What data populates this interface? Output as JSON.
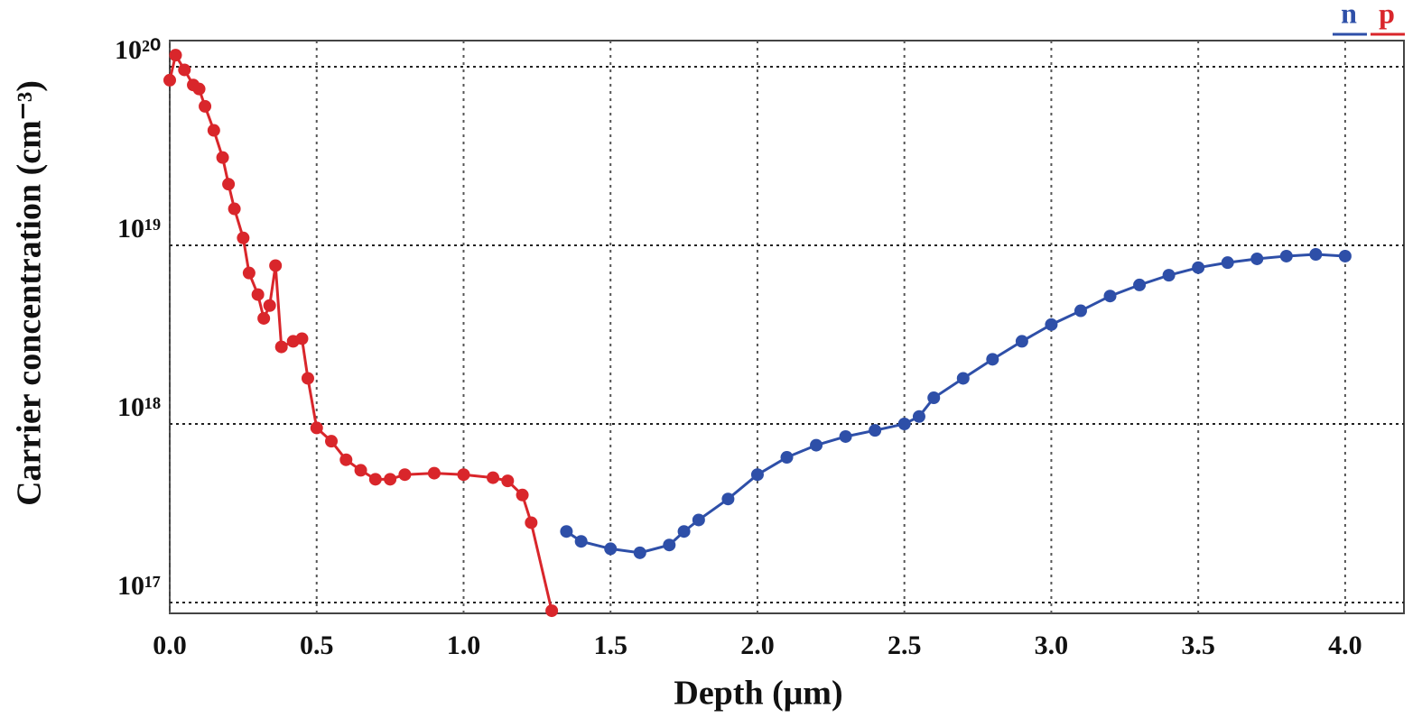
{
  "chart_data": {
    "type": "line",
    "x_label": "Depth (μm)",
    "y_label": "Carrier concentration (cm⁻³)",
    "ylog": true,
    "grid": true,
    "legend_position": "top-right",
    "xlim": [
      0,
      4.2
    ],
    "ylim": [
      8.7e+16,
      1.4e+20
    ],
    "xticks": [
      {
        "value": 0,
        "label": "0.0"
      },
      0.5,
      {
        "value": 1,
        "label": "1.0"
      },
      1.5,
      {
        "value": 2,
        "label": "2.0"
      },
      2.5,
      {
        "value": 3,
        "label": "3.0"
      },
      3.5,
      {
        "value": 4,
        "label": "4.0"
      }
    ],
    "yticks": [
      {
        "value": 1e+17,
        "label": "10¹⁷"
      },
      {
        "value": 1e+18,
        "label": "10¹⁸"
      },
      {
        "value": 1e+19,
        "label": "10¹⁹"
      },
      {
        "value": 1e+20,
        "label": "10²⁰"
      }
    ],
    "series": [
      {
        "name": "n",
        "color": "#2e4fa8",
        "x": [
          1.35,
          1.4,
          1.5,
          1.6,
          1.7,
          1.75,
          1.8,
          1.9,
          2.0,
          2.1,
          2.2,
          2.3,
          2.4,
          2.5,
          2.55,
          2.6,
          2.7,
          2.8,
          2.9,
          3.0,
          3.1,
          3.2,
          3.3,
          3.4,
          3.5,
          3.6,
          3.7,
          3.8,
          3.9,
          4.0
        ],
        "values": [
          2.5e+17,
          2.2e+17,
          2e+17,
          1.9e+17,
          2.1e+17,
          2.5e+17,
          2.9e+17,
          3.8e+17,
          5.2e+17,
          6.5e+17,
          7.6e+17,
          8.5e+17,
          9.2e+17,
          1e+18,
          1.1e+18,
          1.4e+18,
          1.8e+18,
          2.3e+18,
          2.9e+18,
          3.6e+18,
          4.3e+18,
          5.2e+18,
          6e+18,
          6.8e+18,
          7.5e+18,
          8e+18,
          8.4e+18,
          8.7e+18,
          8.9e+18,
          8.7e+18
        ]
      },
      {
        "name": "p",
        "color": "#d9262b",
        "x": [
          0.0,
          0.02,
          0.05,
          0.08,
          0.1,
          0.12,
          0.15,
          0.18,
          0.2,
          0.22,
          0.25,
          0.27,
          0.3,
          0.32,
          0.34,
          0.36,
          0.38,
          0.42,
          0.45,
          0.47,
          0.5,
          0.55,
          0.6,
          0.65,
          0.7,
          0.75,
          0.8,
          0.9,
          1.0,
          1.1,
          1.15,
          1.2,
          1.23,
          1.3
        ],
        "values": [
          8.4e+19,
          1.16e+20,
          9.6e+19,
          7.9e+19,
          7.5e+19,
          6e+19,
          4.4e+19,
          3.1e+19,
          2.2e+19,
          1.6e+19,
          1.1e+19,
          7e+18,
          5.3e+18,
          3.9e+18,
          4.6e+18,
          7.7e+18,
          2.7e+18,
          2.9e+18,
          3e+18,
          1.8e+18,
          9.5e+17,
          8e+17,
          6.3e+17,
          5.5e+17,
          4.9e+17,
          4.9e+17,
          5.2e+17,
          5.3e+17,
          5.2e+17,
          5e+17,
          4.8e+17,
          4e+17,
          2.8e+17,
          9e+16
        ]
      }
    ]
  }
}
